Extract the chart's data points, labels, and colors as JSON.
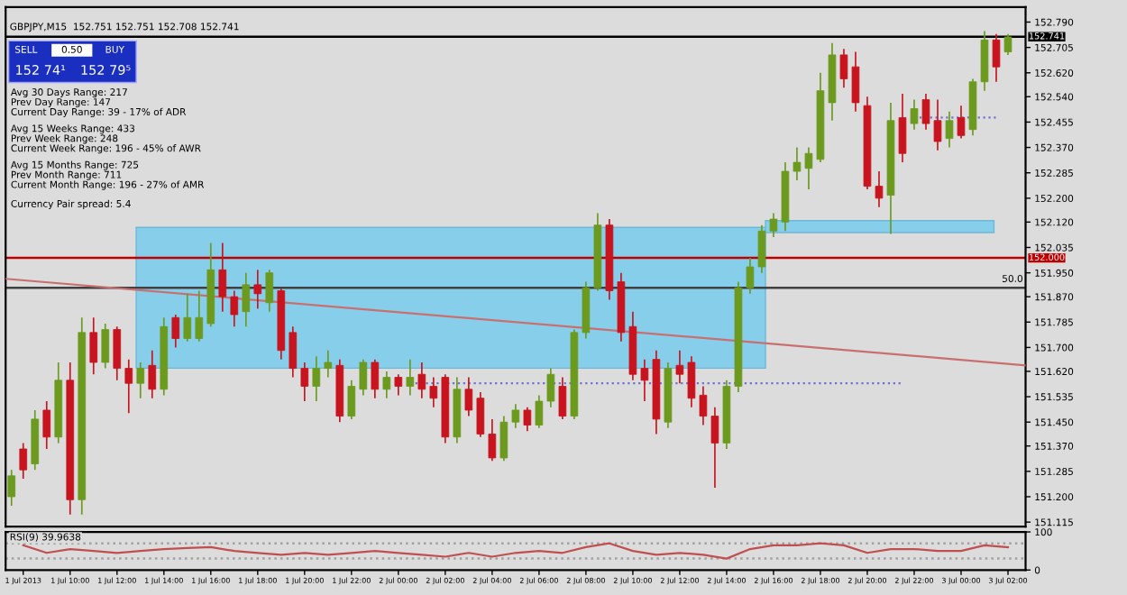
{
  "chart_data": [
    {
      "type": "candlestick",
      "title": "GBPJPY,M15  152.751 152.751 152.708 152.741",
      "annotations": [
        "SELL",
        "0.50",
        "BUY",
        "152 74¹",
        "152 79⁵",
        "Avg 30 Days Range: 217",
        "Prev Day Range: 147",
        "Current Day Range: 39 - 17% of ADR",
        "Avg 15 Weeks Range: 433",
        "Prev Week Range: 248",
        "Current Week Range: 196 - 45% of AWR",
        "Avg 15 Months Range: 725",
        "Prev Month Range: 711",
        "Current Month Range: 196 - 27% of AMR",
        "Currency Pair spread: 5.4",
        {
          "text": "50.0",
          "x": "2013-07-03T02:45",
          "y": 151.9
        }
      ],
      "colors": [
        "#6b9a1f",
        "#c8141e",
        "#6b9a1f",
        "#c8141e",
        "#6b9a1f",
        "#c8141e",
        "#6b9a1f",
        "#c8141e",
        "#6b9a1f",
        "#c8141e",
        "#c8141e",
        "#6b9a1f",
        "#c8141e",
        "#6b9a1f",
        "#c8141e",
        "#6b9a1f",
        "#6b9a1f",
        "#6b9a1f",
        "#c8141e",
        "#c8141e",
        "#6b9a1f",
        "#c8141e",
        "#6b9a1f",
        "#c8141e",
        "#c8141e",
        "#c8141e",
        "#6b9a1f",
        "#6b9a1f",
        "#c8141e",
        "#6b9a1f",
        "#6b9a1f",
        "#c8141e",
        "#6b9a1f",
        "#c8141e",
        "#6b9a1f",
        "#c8141e",
        "#c8141e",
        "#c8141e",
        "#6b9a1f",
        "#c8141e",
        "#c8141e",
        "#c8141e",
        "#6b9a1f",
        "#6b9a1f",
        "#c8141e",
        "#6b9a1f",
        "#6b9a1f",
        "#c8141e",
        "#6b9a1f",
        "#6b9a1f",
        "#6b9a1f",
        "#c8141e",
        "#c8141e",
        "#c8141e",
        "#c8141e",
        "#c8141e",
        "#6b9a1f",
        "#c8141e",
        "#c8141e",
        "#c8141e",
        "#c8141e",
        "#6b9a1f",
        "#6b9a1f",
        "#6b9a1f",
        "#6b9a1f",
        "#6b9a1f",
        "#6b9a1f",
        "#6b9a1f",
        "#6b9a1f",
        "#6b9a1f",
        "#6b9a1f",
        "#c8141e",
        "#c8141e",
        "#c8141e",
        "#c8141e",
        "#6b9a1f",
        "#c8141e",
        "#6b9a1f",
        "#c8141e",
        "#c8141e",
        "#6b9a1f",
        "#c8141e",
        "#6b9a1f",
        "#6b9a1f",
        "#c8141e",
        "#6b9a1f"
      ],
      "x": [
        "2013-07-01T07:30",
        "2013-07-01T08:00",
        "2013-07-01T08:30",
        "2013-07-01T09:00",
        "2013-07-01T09:30",
        "2013-07-01T10:00",
        "2013-07-01T10:30",
        "2013-07-01T11:00",
        "2013-07-01T11:30",
        "2013-07-01T12:00",
        "2013-07-01T12:30",
        "2013-07-01T13:00",
        "2013-07-01T13:30",
        "2013-07-01T14:00",
        "2013-07-01T14:30",
        "2013-07-01T15:00",
        "2013-07-01T15:30",
        "2013-07-01T16:00",
        "2013-07-01T16:30",
        "2013-07-01T17:00",
        "2013-07-01T17:30",
        "2013-07-01T18:00",
        "2013-07-01T18:30",
        "2013-07-01T19:00",
        "2013-07-01T19:30",
        "2013-07-01T20:00",
        "2013-07-01T20:30",
        "2013-07-01T21:00",
        "2013-07-01T21:30",
        "2013-07-01T22:00",
        "2013-07-01T22:30",
        "2013-07-01T23:00",
        "2013-07-01T23:30",
        "2013-07-02T00:00",
        "2013-07-02T00:30",
        "2013-07-02T01:00",
        "2013-07-02T01:30",
        "2013-07-02T02:00",
        "2013-07-02T02:30",
        "2013-07-02T03:00",
        "2013-07-02T03:30",
        "2013-07-02T04:00",
        "2013-07-02T04:30",
        "2013-07-02T05:00",
        "2013-07-02T05:30",
        "2013-07-02T06:00",
        "2013-07-02T06:30",
        "2013-07-02T07:00",
        "2013-07-02T07:30",
        "2013-07-02T08:00",
        "2013-07-02T08:30",
        "2013-07-02T09:00",
        "2013-07-02T09:30",
        "2013-07-02T10:00",
        "2013-07-02T10:30",
        "2013-07-02T11:00",
        "2013-07-02T11:30",
        "2013-07-02T12:00",
        "2013-07-02T12:30",
        "2013-07-02T13:00",
        "2013-07-02T13:30",
        "2013-07-02T14:00",
        "2013-07-02T14:30",
        "2013-07-02T15:00",
        "2013-07-02T15:30",
        "2013-07-02T16:00",
        "2013-07-02T16:30",
        "2013-07-02T17:00",
        "2013-07-02T17:30",
        "2013-07-02T18:00",
        "2013-07-02T18:30",
        "2013-07-02T19:00",
        "2013-07-02T19:30",
        "2013-07-02T20:00",
        "2013-07-02T20:30",
        "2013-07-02T21:00",
        "2013-07-02T21:30",
        "2013-07-02T22:00",
        "2013-07-02T22:30",
        "2013-07-02T23:00",
        "2013-07-02T23:30",
        "2013-07-03T00:00",
        "2013-07-03T00:30",
        "2013-07-03T01:00",
        "2013-07-03T01:30",
        "2013-07-03T02:00"
      ],
      "ohlc": [
        [
          151.2,
          151.29,
          151.17,
          151.27
        ],
        [
          151.36,
          151.38,
          151.26,
          151.29
        ],
        [
          151.31,
          151.49,
          151.29,
          151.46
        ],
        [
          151.49,
          151.52,
          151.36,
          151.4
        ],
        [
          151.4,
          151.65,
          151.38,
          151.59
        ],
        [
          151.59,
          151.65,
          151.14,
          151.19
        ],
        [
          151.19,
          151.8,
          151.14,
          151.75
        ],
        [
          151.75,
          151.8,
          151.61,
          151.65
        ],
        [
          151.65,
          151.78,
          151.63,
          151.76
        ],
        [
          151.76,
          151.77,
          151.59,
          151.63
        ],
        [
          151.63,
          151.66,
          151.48,
          151.58
        ],
        [
          151.58,
          151.65,
          151.53,
          151.63
        ],
        [
          151.64,
          151.69,
          151.53,
          151.56
        ],
        [
          151.56,
          151.8,
          151.54,
          151.77
        ],
        [
          151.8,
          151.81,
          151.7,
          151.73
        ],
        [
          151.73,
          151.88,
          151.72,
          151.8
        ],
        [
          151.73,
          151.89,
          151.72,
          151.8
        ],
        [
          151.78,
          152.05,
          151.77,
          151.96
        ],
        [
          151.96,
          152.05,
          151.82,
          151.87
        ],
        [
          151.87,
          151.89,
          151.77,
          151.81
        ],
        [
          151.82,
          151.95,
          151.77,
          151.91
        ],
        [
          151.91,
          151.96,
          151.83,
          151.88
        ],
        [
          151.85,
          151.96,
          151.82,
          151.95
        ],
        [
          151.89,
          151.9,
          151.66,
          151.69
        ],
        [
          151.75,
          151.77,
          151.6,
          151.63
        ],
        [
          151.63,
          151.65,
          151.52,
          151.57
        ],
        [
          151.57,
          151.67,
          151.52,
          151.63
        ],
        [
          151.63,
          151.69,
          151.6,
          151.65
        ],
        [
          151.64,
          151.66,
          151.45,
          151.47
        ],
        [
          151.47,
          151.59,
          151.46,
          151.57
        ],
        [
          151.56,
          151.66,
          151.54,
          151.65
        ],
        [
          151.65,
          151.66,
          151.53,
          151.56
        ],
        [
          151.56,
          151.62,
          151.53,
          151.6
        ],
        [
          151.6,
          151.61,
          151.54,
          151.57
        ],
        [
          151.57,
          151.66,
          151.54,
          151.6
        ],
        [
          151.61,
          151.65,
          151.53,
          151.56
        ],
        [
          151.57,
          151.6,
          151.5,
          151.53
        ],
        [
          151.6,
          151.61,
          151.38,
          151.4
        ],
        [
          151.4,
          151.6,
          151.38,
          151.56
        ],
        [
          151.56,
          151.6,
          151.47,
          151.49
        ],
        [
          151.53,
          151.55,
          151.4,
          151.41
        ],
        [
          151.41,
          151.46,
          151.32,
          151.33
        ],
        [
          151.33,
          151.47,
          151.32,
          151.45
        ],
        [
          151.45,
          151.51,
          151.43,
          151.49
        ],
        [
          151.49,
          151.5,
          151.42,
          151.44
        ],
        [
          151.44,
          151.54,
          151.43,
          151.52
        ],
        [
          151.52,
          151.63,
          151.5,
          151.61
        ],
        [
          151.57,
          151.6,
          151.46,
          151.47
        ],
        [
          151.47,
          151.76,
          151.46,
          151.75
        ],
        [
          151.75,
          151.92,
          151.73,
          151.9
        ],
        [
          151.9,
          152.15,
          151.89,
          152.11
        ],
        [
          152.11,
          152.13,
          151.86,
          151.89
        ],
        [
          151.92,
          151.95,
          151.72,
          151.75
        ],
        [
          151.77,
          151.82,
          151.59,
          151.61
        ],
        [
          151.63,
          151.66,
          151.52,
          151.59
        ],
        [
          151.66,
          151.69,
          151.41,
          151.46
        ],
        [
          151.45,
          151.65,
          151.43,
          151.63
        ],
        [
          151.64,
          151.69,
          151.58,
          151.61
        ],
        [
          151.65,
          151.67,
          151.5,
          151.53
        ],
        [
          151.54,
          151.57,
          151.44,
          151.47
        ],
        [
          151.47,
          151.5,
          151.23,
          151.38
        ],
        [
          151.38,
          151.59,
          151.36,
          151.57
        ],
        [
          151.57,
          151.92,
          151.55,
          151.9
        ],
        [
          151.9,
          152.0,
          151.88,
          151.97
        ],
        [
          151.97,
          152.11,
          151.95,
          152.09
        ],
        [
          152.09,
          152.15,
          152.07,
          152.13
        ],
        [
          152.12,
          152.32,
          152.09,
          152.29
        ],
        [
          152.29,
          152.37,
          152.26,
          152.32
        ],
        [
          152.3,
          152.37,
          152.23,
          152.35
        ],
        [
          152.33,
          152.62,
          152.32,
          152.56
        ],
        [
          152.52,
          152.72,
          152.46,
          152.68
        ],
        [
          152.68,
          152.7,
          152.57,
          152.6
        ],
        [
          152.64,
          152.69,
          152.49,
          152.52
        ],
        [
          152.51,
          152.54,
          152.23,
          152.24
        ],
        [
          152.24,
          152.29,
          152.17,
          152.2
        ],
        [
          152.21,
          152.52,
          152.08,
          152.46
        ],
        [
          152.47,
          152.55,
          152.32,
          152.35
        ],
        [
          152.45,
          152.53,
          152.43,
          152.5
        ],
        [
          152.53,
          152.55,
          152.43,
          152.45
        ],
        [
          152.46,
          152.53,
          152.36,
          152.39
        ],
        [
          152.4,
          152.49,
          152.37,
          152.46
        ],
        [
          152.47,
          152.51,
          152.4,
          152.41
        ],
        [
          152.43,
          152.6,
          152.41,
          152.59
        ],
        [
          152.59,
          152.76,
          152.56,
          152.73
        ],
        [
          152.73,
          152.75,
          152.59,
          152.64
        ],
        [
          152.69,
          152.75,
          152.68,
          152.74
        ]
      ],
      "series": [
        {
          "type": "line",
          "x": [
            "2013-07-01T07:15",
            "2013-07-03T02:45"
          ],
          "values": [
            151.93,
            151.64
          ],
          "color": "#c87070",
          "line_style": "solid"
        },
        {
          "type": "line",
          "x": [
            "2013-07-02T00:30",
            "2013-07-02T21:30"
          ],
          "values": [
            151.58,
            151.58
          ],
          "color": "#7070d0",
          "line_style": "dotted"
        },
        {
          "type": "line",
          "x": [
            "2013-07-02T22:00",
            "2013-07-03T01:30"
          ],
          "values": [
            152.47,
            152.47
          ],
          "color": "#7070d0",
          "line_style": "dotted"
        }
      ],
      "ref_lines": [
        {
          "axis": "y",
          "value": 152.741,
          "label": "152.741",
          "color": "#000000",
          "line_style": "solid"
        },
        {
          "axis": "y",
          "value": 152.0,
          "label": "152.000",
          "color": "#c00000",
          "line_style": "solid"
        },
        {
          "axis": "y",
          "value": 151.9,
          "color": "#404040",
          "line_style": "solid"
        }
      ],
      "xlim": [
        "2013-07-01T07:15",
        "2013-07-03T02:45"
      ],
      "ylim": [
        151.1,
        152.84
      ],
      "yticks": [
        {
          "value": 152.79,
          "label": "152.790"
        },
        {
          "value": 152.705,
          "label": "152.705"
        },
        {
          "value": 152.62,
          "label": "152.620"
        },
        {
          "value": 152.54,
          "label": "152.540"
        },
        {
          "value": 152.455,
          "label": "152.455"
        },
        {
          "value": 152.37,
          "label": "152.370"
        },
        {
          "value": 152.285,
          "label": "152.285"
        },
        {
          "value": 152.2,
          "label": "152.200"
        },
        {
          "value": 152.12,
          "label": "152.120"
        },
        {
          "value": 152.035,
          "label": "152.035"
        },
        {
          "value": 151.95,
          "label": "151.950"
        },
        {
          "value": 151.87,
          "label": "151.870"
        },
        {
          "value": 151.785,
          "label": "151.785"
        },
        {
          "value": 151.7,
          "label": "151.700"
        },
        {
          "value": 151.62,
          "label": "151.620"
        },
        {
          "value": 151.535,
          "label": "151.535"
        },
        {
          "value": 151.45,
          "label": "151.450"
        },
        {
          "value": 151.37,
          "label": "151.370"
        },
        {
          "value": 151.285,
          "label": "151.285"
        },
        {
          "value": 151.2,
          "label": "151.200"
        },
        {
          "value": 151.115,
          "label": "151.115"
        }
      ],
      "tick_labels": "y",
      "grid": false,
      "legend": false
    },
    {
      "type": "line",
      "title": "RSI(9) 39.9638",
      "x": [
        "2013-07-01T08:00",
        "2013-07-01T09:00",
        "2013-07-01T10:00",
        "2013-07-01T11:00",
        "2013-07-01T12:00",
        "2013-07-01T13:00",
        "2013-07-01T14:00",
        "2013-07-01T15:00",
        "2013-07-01T16:00",
        "2013-07-01T17:00",
        "2013-07-01T18:00",
        "2013-07-01T19:00",
        "2013-07-01T20:00",
        "2013-07-01T21:00",
        "2013-07-01T22:00",
        "2013-07-01T23:00",
        "2013-07-02T00:00",
        "2013-07-02T01:00",
        "2013-07-02T02:00",
        "2013-07-02T03:00",
        "2013-07-02T04:00",
        "2013-07-02T05:00",
        "2013-07-02T06:00",
        "2013-07-02T07:00",
        "2013-07-02T08:00",
        "2013-07-02T09:00",
        "2013-07-02T10:00",
        "2013-07-02T11:00",
        "2013-07-02T12:00",
        "2013-07-02T13:00",
        "2013-07-02T14:00",
        "2013-07-02T15:00",
        "2013-07-02T16:00",
        "2013-07-02T17:00",
        "2013-07-02T18:00",
        "2013-07-02T19:00",
        "2013-07-02T20:00",
        "2013-07-02T21:00",
        "2013-07-02T22:00",
        "2013-07-02T23:00",
        "2013-07-03T00:00",
        "2013-07-03T01:00",
        "2013-07-03T02:00"
      ],
      "series": [
        {
          "color": "#c05050",
          "values": [
            65,
            45,
            55,
            50,
            45,
            50,
            55,
            58,
            60,
            50,
            45,
            40,
            45,
            40,
            45,
            50,
            45,
            40,
            35,
            45,
            35,
            45,
            50,
            45,
            60,
            70,
            50,
            40,
            45,
            40,
            30,
            55,
            65,
            65,
            70,
            65,
            45,
            55,
            55,
            50,
            50,
            65,
            60
          ]
        }
      ],
      "ref_lines": [
        {
          "axis": "y",
          "value": 70,
          "color": "#a0a0a0",
          "line_style": "dotted"
        },
        {
          "axis": "y",
          "value": 30,
          "color": "#a0a0a0",
          "line_style": "dotted"
        }
      ],
      "xlim": [
        "2013-07-01T07:15",
        "2013-07-03T02:45"
      ],
      "ylim": [
        0,
        100
      ],
      "yticks": [
        100,
        0
      ],
      "xticks": [
        {
          "value": "2013-07-01T08:00",
          "label": "1 Jul 2013"
        },
        {
          "value": "2013-07-01T10:00",
          "label": "1 Jul 10:00"
        },
        {
          "value": "2013-07-01T12:00",
          "label": "1 Jul 12:00"
        },
        {
          "value": "2013-07-01T14:00",
          "label": "1 Jul 14:00"
        },
        {
          "value": "2013-07-01T16:00",
          "label": "1 Jul 16:00"
        },
        {
          "value": "2013-07-01T18:00",
          "label": "1 Jul 18:00"
        },
        {
          "value": "2013-07-01T20:00",
          "label": "1 Jul 20:00"
        },
        {
          "value": "2013-07-01T22:00",
          "label": "1 Jul 22:00"
        },
        {
          "value": "2013-07-02T00:00",
          "label": "2 Jul 00:00"
        },
        {
          "value": "2013-07-02T02:00",
          "label": "2 Jul 02:00"
        },
        {
          "value": "2013-07-02T04:00",
          "label": "2 Jul 04:00"
        },
        {
          "value": "2013-07-02T06:00",
          "label": "2 Jul 06:00"
        },
        {
          "value": "2013-07-02T08:00",
          "label": "2 Jul 08:00"
        },
        {
          "value": "2013-07-02T10:00",
          "label": "2 Jul 10:00"
        },
        {
          "value": "2013-07-02T12:00",
          "label": "2 Jul 12:00"
        },
        {
          "value": "2013-07-02T14:00",
          "label": "2 Jul 14:00"
        },
        {
          "value": "2013-07-02T16:00",
          "label": "2 Jul 16:00"
        },
        {
          "value": "2013-07-02T18:00",
          "label": "2 Jul 18:00"
        },
        {
          "value": "2013-07-02T20:00",
          "label": "2 Jul 20:00"
        },
        {
          "value": "2013-07-02T22:00",
          "label": "2 Jul 22:00"
        },
        {
          "value": "2013-07-03T00:00",
          "label": "3 Jul 00:00"
        },
        {
          "value": "2013-07-03T02:00",
          "label": "3 Jul 02:00"
        }
      ],
      "grid": false,
      "legend": false
    }
  ]
}
